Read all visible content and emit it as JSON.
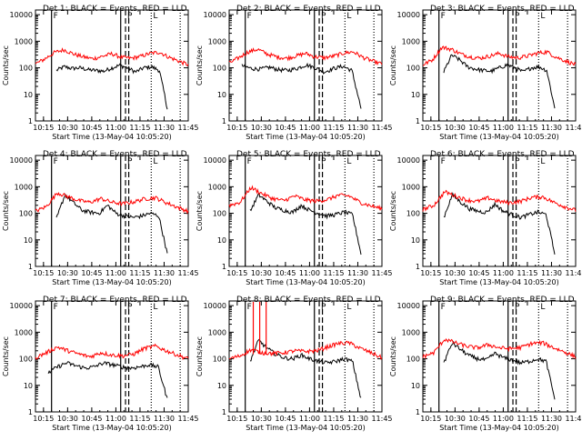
{
  "colors": {
    "events": "#000000",
    "lld": "#ff0000",
    "axis": "#000000",
    "background": "#ffffff"
  },
  "panel_labels": {
    "ylabel": "Counts/sec",
    "xlabel": "Start Time (13-May-04 10:05:20)"
  },
  "x_ticks": [
    "10:15",
    "10:30",
    "10:45",
    "11:00",
    "11:15",
    "11:30",
    "11:45"
  ],
  "y_ticks": [
    "1",
    "10",
    "100",
    "1000",
    "10000"
  ],
  "markers": [
    "F",
    "P",
    "L"
  ],
  "chart_data": [
    {
      "type": "line",
      "title": "Det 1: BLACK = Events, RED = LLD",
      "xlabel": "Start Time (13-May-04 10:05:20)",
      "ylabel": "Counts/sec",
      "ylim": [
        1,
        15000
      ],
      "y_scale": "log",
      "xlim": [
        "10:10",
        "11:45"
      ],
      "series": [
        {
          "name": "Events",
          "color": "#000000",
          "start": "10:23",
          "end": "11:32",
          "base": [
            80,
            110,
            95,
            100,
            85,
            80,
            75,
            100,
            125,
            100,
            70,
            100,
            110,
            80,
            3
          ]
        },
        {
          "name": "LLD",
          "color": "#ff0000",
          "start": "10:10",
          "end": "11:45",
          "base": [
            140,
            220,
            380,
            480,
            330,
            260,
            220,
            270,
            340,
            250,
            230,
            270,
            350,
            390,
            250,
            180,
            130
          ]
        }
      ]
    },
    {
      "type": "line",
      "title": "Det 2: BLACK = Events, RED = LLD",
      "xlabel": "Start Time (13-May-04 10:05:20)",
      "ylabel": "Counts/sec",
      "ylim": [
        1,
        15000
      ],
      "y_scale": "log",
      "xlim": [
        "10:10",
        "11:45"
      ],
      "series": [
        {
          "name": "Events",
          "color": "#000000",
          "start": "10:18",
          "end": "11:32",
          "base": [
            120,
            95,
            90,
            105,
            85,
            80,
            95,
            130,
            100,
            70,
            95,
            115,
            80,
            3
          ]
        },
        {
          "name": "LLD",
          "color": "#ff0000",
          "start": "10:10",
          "end": "11:45",
          "base": [
            150,
            240,
            400,
            500,
            330,
            260,
            230,
            280,
            350,
            260,
            240,
            280,
            360,
            400,
            250,
            180,
            140
          ]
        }
      ]
    },
    {
      "type": "line",
      "title": "Det 3: BLACK = Events, RED = LLD",
      "xlabel": "Start Time (13-May-04 10:05:20)",
      "ylabel": "Counts/sec",
      "ylim": [
        1,
        15000
      ],
      "y_scale": "log",
      "xlim": [
        "10:10",
        "11:45"
      ],
      "series": [
        {
          "name": "Events",
          "color": "#000000",
          "start": "10:23",
          "end": "11:32",
          "base": [
            70,
            300,
            200,
            110,
            90,
            80,
            75,
            100,
            130,
            100,
            70,
            100,
            110,
            80,
            3
          ]
        },
        {
          "name": "LLD",
          "color": "#ff0000",
          "start": "10:10",
          "end": "11:45",
          "base": [
            130,
            200,
            600,
            500,
            330,
            260,
            230,
            280,
            350,
            260,
            240,
            280,
            360,
            400,
            250,
            180,
            130
          ]
        }
      ]
    },
    {
      "type": "line",
      "title": "Det 4: BLACK = Events, RED = LLD",
      "xlabel": "Start Time (13-May-04 10:05:20)",
      "ylabel": "Counts/sec",
      "ylim": [
        1,
        15000
      ],
      "y_scale": "log",
      "xlim": [
        "10:10",
        "11:45"
      ],
      "series": [
        {
          "name": "Events",
          "color": "#000000",
          "start": "10:23",
          "end": "11:32",
          "base": [
            60,
            500,
            250,
            130,
            110,
            100,
            200,
            100,
            80,
            70,
            80,
            100,
            80,
            3
          ]
        },
        {
          "name": "LLD",
          "color": "#ff0000",
          "start": "10:10",
          "end": "11:45",
          "base": [
            120,
            180,
            600,
            420,
            300,
            260,
            360,
            260,
            230,
            270,
            350,
            390,
            250,
            170,
            120
          ]
        }
      ]
    },
    {
      "type": "line",
      "title": "Det 5: BLACK = Events, RED = LLD",
      "xlabel": "Start Time (13-May-04 10:05:20)",
      "ylabel": "Counts/sec",
      "ylim": [
        1,
        15000
      ],
      "y_scale": "log",
      "xlim": [
        "10:10",
        "11:45"
      ],
      "series": [
        {
          "name": "Events",
          "color": "#000000",
          "start": "10:23",
          "end": "11:32",
          "base": [
            120,
            500,
            280,
            160,
            130,
            110,
            200,
            130,
            100,
            80,
            90,
            110,
            90,
            3
          ]
        },
        {
          "name": "LLD",
          "color": "#ff0000",
          "start": "10:10",
          "end": "11:45",
          "base": [
            200,
            260,
            950,
            550,
            360,
            300,
            450,
            320,
            290,
            330,
            480,
            450,
            260,
            190,
            150
          ]
        }
      ]
    },
    {
      "type": "line",
      "title": "Det 6: BLACK = Events, RED = LLD",
      "xlabel": "Start Time (13-May-04 10:05:20)",
      "ylabel": "Counts/sec",
      "ylim": [
        1,
        15000
      ],
      "y_scale": "log",
      "xlim": [
        "10:10",
        "11:45"
      ],
      "series": [
        {
          "name": "Events",
          "color": "#000000",
          "start": "10:23",
          "end": "11:32",
          "base": [
            70,
            500,
            260,
            150,
            120,
            110,
            220,
            120,
            90,
            70,
            90,
            110,
            90,
            3
          ]
        },
        {
          "name": "LLD",
          "color": "#ff0000",
          "start": "10:10",
          "end": "11:45",
          "base": [
            140,
            200,
            650,
            450,
            320,
            280,
            380,
            280,
            250,
            290,
            400,
            420,
            260,
            180,
            130
          ]
        }
      ]
    },
    {
      "type": "line",
      "title": "Det 7: BLACK = Events, RED = LLD",
      "xlabel": "Start Time (13-May-04 10:05:20)",
      "ylabel": "Counts/sec",
      "ylim": [
        1,
        15000
      ],
      "y_scale": "log",
      "xlim": [
        "10:10",
        "11:45"
      ],
      "series": [
        {
          "name": "Events",
          "color": "#000000",
          "start": "10:18",
          "end": "11:32",
          "base": [
            30,
            50,
            70,
            55,
            45,
            50,
            70,
            60,
            50,
            45,
            50,
            60,
            50,
            3
          ]
        },
        {
          "name": "LLD",
          "color": "#ff0000",
          "start": "10:10",
          "end": "11:45",
          "base": [
            110,
            170,
            280,
            200,
            150,
            120,
            170,
            140,
            130,
            150,
            250,
            300,
            200,
            140,
            100
          ]
        }
      ]
    },
    {
      "type": "line",
      "title": "Det 8: BLACK = Events, RED = LLD",
      "xlabel": "Start Time (13-May-04 10:05:20)",
      "ylabel": "Counts/sec",
      "ylim": [
        1,
        15000
      ],
      "y_scale": "log",
      "xlim": [
        "10:10",
        "11:45"
      ],
      "series": [
        {
          "name": "Events",
          "color": "#000000",
          "start": "10:23",
          "end": "11:32",
          "base": [
            80,
            500,
            250,
            150,
            110,
            100,
            140,
            100,
            80,
            70,
            80,
            100,
            80,
            3
          ]
        },
        {
          "name": "LLD",
          "color": "#ff0000",
          "start": "10:10",
          "end": "11:45",
          "base": [
            100,
            130,
            220,
            170,
            160,
            170,
            200,
            190,
            200,
            280,
            380,
            400,
            250,
            170,
            110
          ]
        }
      ],
      "spikes": [
        "10:25",
        "10:29",
        "10:33"
      ]
    },
    {
      "type": "line",
      "title": "Det 9: BLACK = Events, RED = LLD",
      "xlabel": "Start Time (13-May-04 10:05:20)",
      "ylabel": "Counts/sec",
      "ylim": [
        1,
        15000
      ],
      "y_scale": "log",
      "xlim": [
        "10:10",
        "11:45"
      ],
      "series": [
        {
          "name": "Events",
          "color": "#000000",
          "start": "10:23",
          "end": "11:32",
          "base": [
            70,
            400,
            220,
            130,
            100,
            90,
            160,
            110,
            90,
            70,
            80,
            100,
            80,
            3
          ]
        },
        {
          "name": "LLD",
          "color": "#ff0000",
          "start": "10:10",
          "end": "11:45",
          "base": [
            120,
            170,
            550,
            400,
            300,
            260,
            340,
            260,
            240,
            270,
            380,
            400,
            260,
            180,
            120
          ]
        }
      ]
    }
  ],
  "vertical_lines": [
    {
      "time": "10:20",
      "style": "solid",
      "marker": "F"
    },
    {
      "time": "11:03",
      "style": "solid"
    },
    {
      "time": "11:06",
      "style": "dashed",
      "marker": "P"
    },
    {
      "time": "11:08",
      "style": "dashed"
    },
    {
      "time": "11:22",
      "style": "dotted",
      "marker": "L"
    },
    {
      "time": "11:40",
      "style": "dotted"
    }
  ]
}
